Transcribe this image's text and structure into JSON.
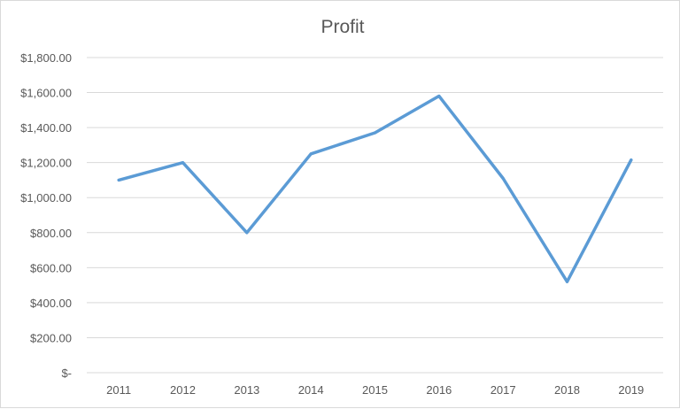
{
  "chart_data": {
    "type": "line",
    "title": "Profit",
    "xlabel": "",
    "ylabel": "",
    "categories": [
      "2011",
      "2012",
      "2013",
      "2014",
      "2015",
      "2016",
      "2017",
      "2018",
      "2019"
    ],
    "series": [
      {
        "values": [
          1100,
          1200,
          800,
          1250,
          1370,
          1580,
          1110,
          520,
          1215
        ],
        "color": "#5b9bd5"
      }
    ],
    "ylim": [
      0,
      1800
    ],
    "yticks": [
      0,
      200,
      400,
      600,
      800,
      1000,
      1200,
      1400,
      1600,
      1800
    ],
    "ytick_labels": [
      "$-",
      "$200.00",
      "$400.00",
      "$600.00",
      "$800.00",
      "$1,000.00",
      "$1,200.00",
      "$1,400.00",
      "$1,600.00",
      "$1,800.00"
    ],
    "grid": true,
    "legend": "none"
  }
}
